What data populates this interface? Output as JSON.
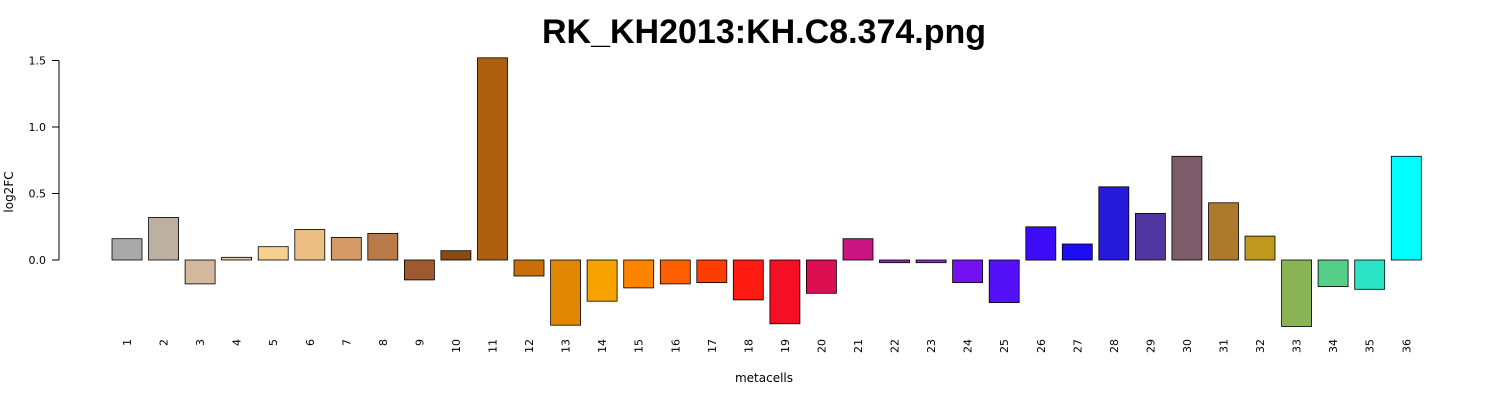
{
  "chart_data": {
    "type": "bar",
    "title": "RK_KH2013:KH.C8.374.png",
    "xlabel": "metacells",
    "ylabel": "log2FC",
    "ylim": [
      -0.5,
      1.5
    ],
    "yticks": [
      0.0,
      0.5,
      1.0,
      1.5
    ],
    "ytick_labels": [
      "0.0",
      "0.5",
      "1.0",
      "1.5"
    ],
    "grid": false,
    "categories": [
      "1",
      "2",
      "3",
      "4",
      "5",
      "6",
      "7",
      "8",
      "9",
      "10",
      "11",
      "12",
      "13",
      "14",
      "15",
      "16",
      "17",
      "18",
      "19",
      "20",
      "21",
      "22",
      "23",
      "24",
      "25",
      "26",
      "27",
      "28",
      "29",
      "30",
      "31",
      "32",
      "33",
      "34",
      "35",
      "36"
    ],
    "values": [
      0.16,
      0.32,
      -0.18,
      0.02,
      0.1,
      0.23,
      0.17,
      0.2,
      -0.15,
      0.07,
      1.52,
      -0.12,
      -0.49,
      -0.31,
      -0.21,
      -0.18,
      -0.17,
      -0.3,
      -0.48,
      -0.25,
      0.16,
      -0.02,
      -0.02,
      -0.17,
      -0.32,
      0.25,
      0.12,
      0.55,
      0.35,
      0.78,
      0.43,
      0.18,
      -0.5,
      -0.2,
      -0.22,
      0.78
    ],
    "colors": [
      "#A9A9A9",
      "#BDB0A2",
      "#D2B99E",
      "#E5C497",
      "#F7D08F",
      "#EEBF84",
      "#D49A68",
      "#B97B4A",
      "#A0592E",
      "#8C4A12",
      "#AE600F",
      "#C96E09",
      "#E18600",
      "#F6A300",
      "#FE8400",
      "#FE5F00",
      "#FE3E00",
      "#FF1A12",
      "#F50F24",
      "#DB0E52",
      "#C91481",
      "#8A2AB0",
      "#8B2DC8",
      "#7411F0",
      "#5410F6",
      "#3C0CF6",
      "#1D0CF4",
      "#2719D9",
      "#4F36A0",
      "#7D5B68",
      "#AD7A2D",
      "#BF991E",
      "#89B356",
      "#55CE88",
      "#2BE3C5",
      "#00FEFE"
    ]
  }
}
